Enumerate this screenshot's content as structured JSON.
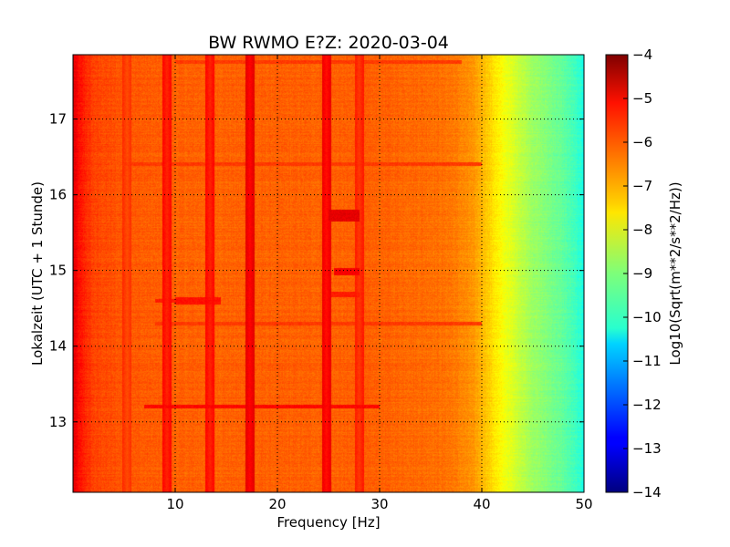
{
  "chart_data": {
    "type": "heatmap",
    "title": "BW RWMO E?Z: 2020-03-04",
    "xlabel": "Frequency [Hz]",
    "ylabel": "Lokalzeit (UTC + 1 Stunde)",
    "xlim": [
      0,
      50
    ],
    "ylim": [
      17.85,
      12.07
    ],
    "y_inverted": true,
    "xticks": [
      10,
      20,
      30,
      40,
      50
    ],
    "yticks": [
      13,
      14,
      15,
      16,
      17
    ],
    "grid": true,
    "colorbar": {
      "label": "Log10(Sqrt(m**2/s**2/Hz))",
      "range": [
        -14,
        -4
      ],
      "ticks": [
        -4,
        -5,
        -6,
        -7,
        -8,
        -9,
        -10,
        -11,
        -12,
        -13,
        -14
      ],
      "colormap": "jet"
    },
    "spectral_profile": {
      "freq_hz": [
        0,
        0.6,
        2,
        5,
        10,
        20,
        30,
        35,
        37,
        39,
        40,
        41,
        42,
        43,
        44,
        45,
        46,
        47,
        48,
        49,
        50
      ],
      "value": [
        -4.9,
        -5.4,
        -5.9,
        -6.1,
        -6.2,
        -6.2,
        -6.2,
        -6.3,
        -6.4,
        -6.7,
        -7.0,
        -7.4,
        -7.8,
        -8.1,
        -8.4,
        -8.7,
        -8.9,
        -9.1,
        -9.3,
        -9.6,
        -10.0
      ]
    },
    "vertical_lines": [
      {
        "freq_hz": 9.2,
        "value": -5.6
      },
      {
        "freq_hz": 13.4,
        "value": -5.6
      },
      {
        "freq_hz": 17.3,
        "value": -5.3
      },
      {
        "freq_hz": 24.8,
        "value": -5.4
      },
      {
        "freq_hz": 5.3,
        "value": -6.0
      },
      {
        "freq_hz": 28.0,
        "value": -5.8
      }
    ],
    "horizontal_bands": [
      {
        "time": 13.2,
        "f_from": 7,
        "f_to": 30,
        "value": -5.3
      },
      {
        "time": 14.3,
        "f_from": 8,
        "f_to": 40,
        "value": -5.8
      },
      {
        "time": 14.6,
        "f_from": 8,
        "f_to": 14,
        "value": -5.5
      },
      {
        "time": 16.4,
        "f_from": 5,
        "f_to": 40,
        "value": -5.8
      },
      {
        "time": 17.75,
        "f_from": 10,
        "f_to": 38,
        "value": -5.8
      }
    ],
    "hot_spots": [
      {
        "f_from": 25,
        "f_to": 28,
        "t_from": 15.65,
        "t_to": 15.8,
        "value": -5.0
      },
      {
        "f_from": 25.5,
        "f_to": 28,
        "t_from": 14.94,
        "t_to": 15.03,
        "value": -5.2
      },
      {
        "f_from": 24.5,
        "f_to": 28,
        "t_from": 14.65,
        "t_to": 14.72,
        "value": -5.5
      },
      {
        "f_from": 10,
        "f_to": 14.5,
        "t_from": 14.55,
        "t_to": 14.65,
        "value": -5.4
      }
    ]
  }
}
